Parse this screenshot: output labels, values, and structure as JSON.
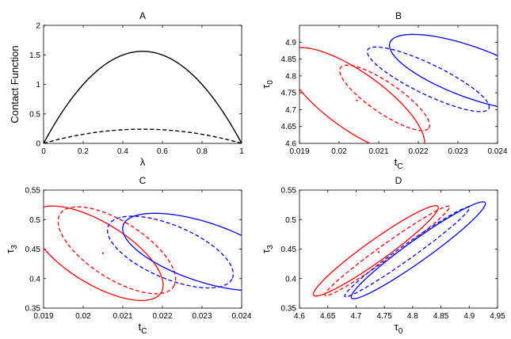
{
  "chart_data": [
    {
      "panel": "A",
      "type": "line",
      "title": "A",
      "xlabel": "λ",
      "ylabel": "Contact Function",
      "xlim": [
        0,
        1
      ],
      "ylim": [
        0,
        2
      ],
      "xticks": [
        "0",
        "0.2",
        "0.4",
        "0.6",
        "0.8",
        "1"
      ],
      "yticks": [
        "0",
        "0.5",
        "1",
        "1.5",
        "2"
      ],
      "series": [
        {
          "style": "solid",
          "color": "#000000",
          "x": [
            0,
            0.1,
            0.2,
            0.3,
            0.4,
            0.5,
            0.6,
            0.7,
            0.8,
            0.9,
            1
          ],
          "y": [
            0,
            0.56,
            1.0,
            1.31,
            1.5,
            1.56,
            1.5,
            1.31,
            1.0,
            0.56,
            0
          ]
        },
        {
          "style": "dashed",
          "color": "#000000",
          "x": [
            0,
            0.1,
            0.2,
            0.3,
            0.4,
            0.5,
            0.6,
            0.7,
            0.8,
            0.9,
            1
          ],
          "y": [
            0,
            0.086,
            0.154,
            0.202,
            0.23,
            0.24,
            0.23,
            0.202,
            0.154,
            0.086,
            0
          ]
        }
      ]
    },
    {
      "panel": "B",
      "type": "scatter",
      "title": "B",
      "xlabel": "t_C",
      "ylabel": "τ_0",
      "xlim": [
        0.019,
        0.024
      ],
      "ylim": [
        4.6,
        4.95
      ],
      "xticks": [
        "0.019",
        "0.02",
        "0.021",
        "0.022",
        "0.023",
        "0.024"
      ],
      "yticks": [
        "4.6",
        "4.65",
        "4.7",
        "4.75",
        "4.8",
        "4.85",
        "4.9"
      ],
      "points": [
        {
          "x": 0.02045,
          "y": 4.727,
          "color": "#ff0000"
        }
      ],
      "ellipses": [
        {
          "color": "#ff0000",
          "style": "solid",
          "cx": 0.0204,
          "cy": 4.725,
          "rx": 0.0021,
          "ry": 0.085,
          "tilt": -0.62
        },
        {
          "color": "#ff0000",
          "style": "dashed",
          "cx": 0.02115,
          "cy": 4.735,
          "rx": 0.00135,
          "ry": 0.045,
          "tilt": -0.6
        },
        {
          "color": "#0000ff",
          "style": "dashed",
          "cx": 0.02225,
          "cy": 4.79,
          "rx": 0.0017,
          "ry": 0.045,
          "tilt": -0.45
        },
        {
          "color": "#0000ff",
          "style": "solid",
          "cx": 0.02335,
          "cy": 4.81,
          "rx": 0.0022,
          "ry": 0.075,
          "tilt": -0.35
        }
      ]
    },
    {
      "panel": "C",
      "type": "scatter",
      "title": "C",
      "xlabel": "t_C",
      "ylabel": "τ_3",
      "xlim": [
        0.019,
        0.024
      ],
      "ylim": [
        0.35,
        0.55
      ],
      "xticks": [
        "0.019",
        "0.02",
        "0.021",
        "0.022",
        "0.023",
        "0.024"
      ],
      "yticks": [
        "0.35",
        "0.4",
        "0.45",
        "0.5",
        "0.55"
      ],
      "points": [
        {
          "x": 0.0205,
          "y": 0.443,
          "color": "#ff0000"
        }
      ],
      "ellipses": [
        {
          "color": "#ff0000",
          "style": "solid",
          "cx": 0.02035,
          "cy": 0.443,
          "rx": 0.0019,
          "ry": 0.052,
          "tilt": -0.55
        },
        {
          "color": "#ff0000",
          "style": "dashed",
          "cx": 0.02085,
          "cy": 0.448,
          "rx": 0.0017,
          "ry": 0.048,
          "tilt": -0.57
        },
        {
          "color": "#0000ff",
          "style": "dashed",
          "cx": 0.0222,
          "cy": 0.445,
          "rx": 0.0017,
          "ry": 0.045,
          "tilt": -0.4
        },
        {
          "color": "#0000ff",
          "style": "solid",
          "cx": 0.02305,
          "cy": 0.445,
          "rx": 0.00215,
          "ry": 0.05,
          "tilt": -0.32
        }
      ]
    },
    {
      "panel": "D",
      "type": "scatter",
      "title": "D",
      "xlabel": "τ_0",
      "ylabel": "τ_3",
      "xlim": [
        4.6,
        4.95
      ],
      "ylim": [
        0.35,
        0.55
      ],
      "xticks": [
        "4.6",
        "4.65",
        "4.7",
        "4.75",
        "4.8",
        "4.85",
        "4.9",
        "4.95"
      ],
      "yticks": [
        "0.35",
        "0.4",
        "0.45",
        "0.5",
        "0.55"
      ],
      "points": [
        {
          "x": 4.74,
          "y": 0.445,
          "color": "#ff0000"
        }
      ],
      "ellipses": [
        {
          "color": "#ff0000",
          "style": "solid",
          "cx": 4.735,
          "cy": 0.447,
          "rx": 0.135,
          "ry": 0.018,
          "tilt": 0.62
        },
        {
          "color": "#ff0000",
          "style": "dashed",
          "cx": 4.755,
          "cy": 0.447,
          "rx": 0.135,
          "ry": 0.012,
          "tilt": 0.62
        },
        {
          "color": "#0000ff",
          "style": "dashed",
          "cx": 4.79,
          "cy": 0.445,
          "rx": 0.135,
          "ry": 0.012,
          "tilt": 0.62
        },
        {
          "color": "#0000ff",
          "style": "solid",
          "cx": 4.81,
          "cy": 0.448,
          "rx": 0.145,
          "ry": 0.018,
          "tilt": 0.62
        }
      ]
    }
  ]
}
